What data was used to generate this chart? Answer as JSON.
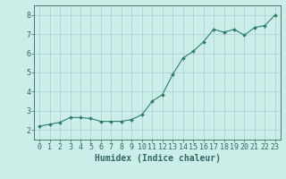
{
  "x": [
    0,
    1,
    2,
    3,
    4,
    5,
    6,
    7,
    8,
    9,
    10,
    11,
    12,
    13,
    14,
    15,
    16,
    17,
    18,
    19,
    20,
    21,
    22,
    23
  ],
  "y": [
    2.2,
    2.3,
    2.4,
    2.65,
    2.65,
    2.6,
    2.45,
    2.45,
    2.45,
    2.55,
    2.8,
    3.5,
    3.85,
    4.9,
    5.75,
    6.1,
    6.6,
    7.25,
    7.1,
    7.25,
    6.95,
    7.35,
    7.45,
    8.0
  ],
  "xlabel": "Humidex (Indice chaleur)",
  "xlim_min": -0.5,
  "xlim_max": 23.5,
  "ylim_min": 1.5,
  "ylim_max": 8.5,
  "yticks": [
    2,
    3,
    4,
    5,
    6,
    7,
    8
  ],
  "xticks": [
    0,
    1,
    2,
    3,
    4,
    5,
    6,
    7,
    8,
    9,
    10,
    11,
    12,
    13,
    14,
    15,
    16,
    17,
    18,
    19,
    20,
    21,
    22,
    23
  ],
  "line_color": "#2d7d6e",
  "marker": "D",
  "marker_size": 2.0,
  "bg_color": "#cceee8",
  "grid_color": "#aacccc",
  "axis_color": "#336666",
  "xlabel_fontsize": 7,
  "tick_fontsize": 6,
  "line_width": 0.8
}
